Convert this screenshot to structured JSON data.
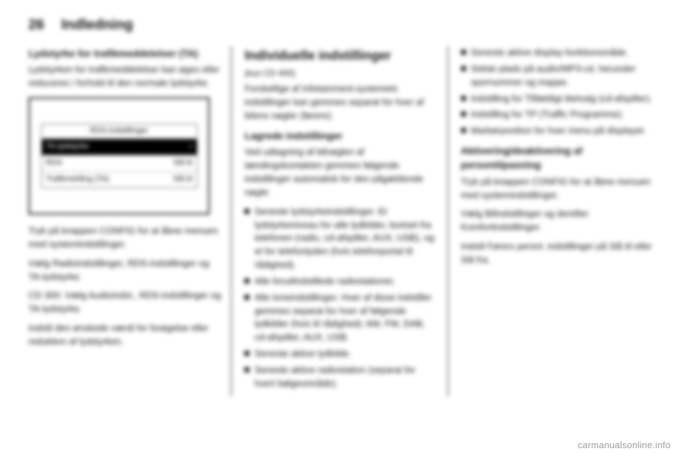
{
  "header": {
    "page_number": "26",
    "title": "Indledning"
  },
  "col1": {
    "heading": "Lydstyrke for trafikmeddelelser (TA)",
    "para1": "Lydstyrken for trafikmeddelelser kan øges eller reduceres i forhold til den normale lydstyrke.",
    "screenshot": {
      "title": "RDS-indstillinger",
      "rows": [
        {
          "label": "TA-lydstyrke",
          "value": "›",
          "selected": true
        },
        {
          "label": "RDS",
          "value": "Slå til",
          "selected": false
        },
        {
          "label": "Trafikmelding (TA)",
          "value": "Slå til",
          "selected": false
        }
      ]
    },
    "para2": "Tryk på knappen CONFIG for at åbne menuen med systemindstillinger.",
    "para3": "Vælg Radioindstillinger, RDS-indstillinger og TA-lydstyrke.",
    "para4": "CD 300: Vælg Audioindst., RDS-indstillinger og TA-lydstyrke.",
    "para5": "Indstil den ønskede værdi for forøgelse eller reduktion af lydstyrken."
  },
  "col2": {
    "heading": "Individuelle indstillinger",
    "sub": "(kun CD 400)",
    "para1": "Forskellige af Infotainment-systemets indstillinger kan gemmes separat for hver af bilens nøgler (førere).",
    "heading2": "Lagrede indstillinger",
    "para2": "Ved udtagning af bilnøglen af tændingskontakten gemmes følgende indstillinger automatisk for den pågældende nøgle:",
    "bullets": [
      "Seneste lydstyrkeindstillinger. Et lydstyrkeniveau for alle lydkilder, bortset fra telefonen (radio, cd-afspiller, AUX, USB), og et for telefonlyden (hvis telefonportal til rådighed).",
      "Alle forudindstillede radiostationer.",
      "Alle toneindstillinger. Hver af disse indstiller gemmes separat for hver af følgende lydkilder (hvis til rådighed): AM, FM, DAB, cd-afspiller, AUX, USB.",
      "Seneste aktive lydkilde.",
      "Seneste aktive radiostation (separat for hvert bølgeområde)."
    ]
  },
  "col3": {
    "bullets": [
      "Seneste aktive display-funktionsmåde.",
      "Sidste plads på audio/MP3-cd, herunder spornummer og mappe.",
      "Indstilling for Tilfældigt titelvalg (cd-afspiller).",
      "Indstilling for TP (Traffic Programme).",
      "Markørposition for hver menu på displayet."
    ],
    "heading": "Aktivering/deaktivering af persontilpasning",
    "para1": "Tryk på knappen CONFIG for at åbne menuen med systemindstillinger.",
    "para2": "Vælg Bilindstillinger og derefter Komfortindstillinger.",
    "para3": "Indstil Førers persnl. indstillinger på Slå til eller Slå fra."
  },
  "watermark": "carmanualsonline.info"
}
